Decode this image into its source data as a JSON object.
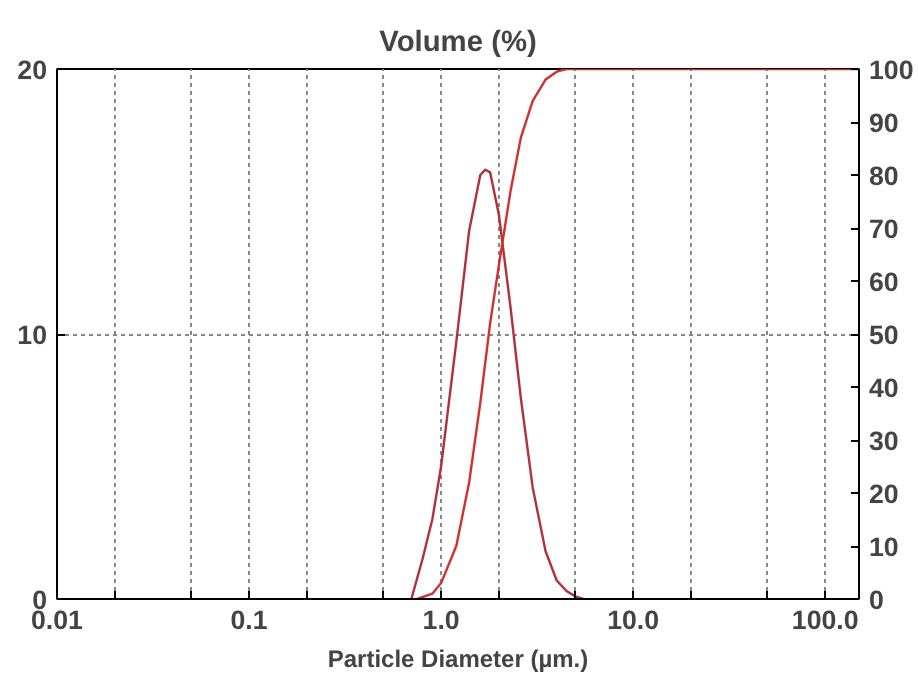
{
  "chart_data": {
    "type": "line",
    "title": "Volume (%)",
    "xlabel": "Particle Diameter (µm.)",
    "log": "x",
    "xlim": [
      0.01,
      150
    ],
    "ylim": [
      0,
      20
    ],
    "y2lim": [
      0,
      100
    ],
    "xticks": [
      {
        "value": 0.01,
        "label": "0.01"
      },
      {
        "value": 0.02,
        "label": null
      },
      {
        "value": 0.05,
        "label": null
      },
      {
        "value": 0.1,
        "label": "0.1"
      },
      {
        "value": 0.2,
        "label": null
      },
      {
        "value": 0.5,
        "label": null
      },
      {
        "value": 1,
        "label": "1.0"
      },
      {
        "value": 2,
        "label": null
      },
      {
        "value": 5,
        "label": null
      },
      {
        "value": 10,
        "label": "10.0"
      },
      {
        "value": 20,
        "label": null
      },
      {
        "value": 50,
        "label": null
      },
      {
        "value": 100,
        "label": "100.0"
      }
    ],
    "yticks": [
      0,
      10,
      20
    ],
    "y2ticks": [
      0,
      10,
      20,
      30,
      40,
      50,
      60,
      70,
      80,
      90,
      100
    ],
    "grid": true,
    "line_style": "solid",
    "series": [
      {
        "color": "#b0303c",
        "x": [
          0.7,
          0.8,
          0.9,
          1.0,
          1.2,
          1.4,
          1.6,
          1.7,
          1.8,
          2.0,
          2.3,
          2.6,
          3.0,
          3.5,
          4.0,
          4.5,
          5.0,
          5.5
        ],
        "values": [
          0,
          1.5,
          3.0,
          5.0,
          9.7,
          13.9,
          16.0,
          16.2,
          16.1,
          14.5,
          11.0,
          7.6,
          4.2,
          1.8,
          0.7,
          0.3,
          0.1,
          0
        ]
      },
      {
        "color": "#d03030",
        "axis": "y2",
        "x": [
          0.75,
          0.9,
          1.0,
          1.2,
          1.4,
          1.6,
          1.8,
          2.0,
          2.3,
          2.6,
          3.0,
          3.5,
          4.0,
          4.5,
          150
        ],
        "values": [
          0,
          1,
          3,
          10,
          22,
          37,
          52,
          63,
          77,
          87,
          94,
          98,
          99.5,
          100,
          100
        ]
      }
    ]
  }
}
